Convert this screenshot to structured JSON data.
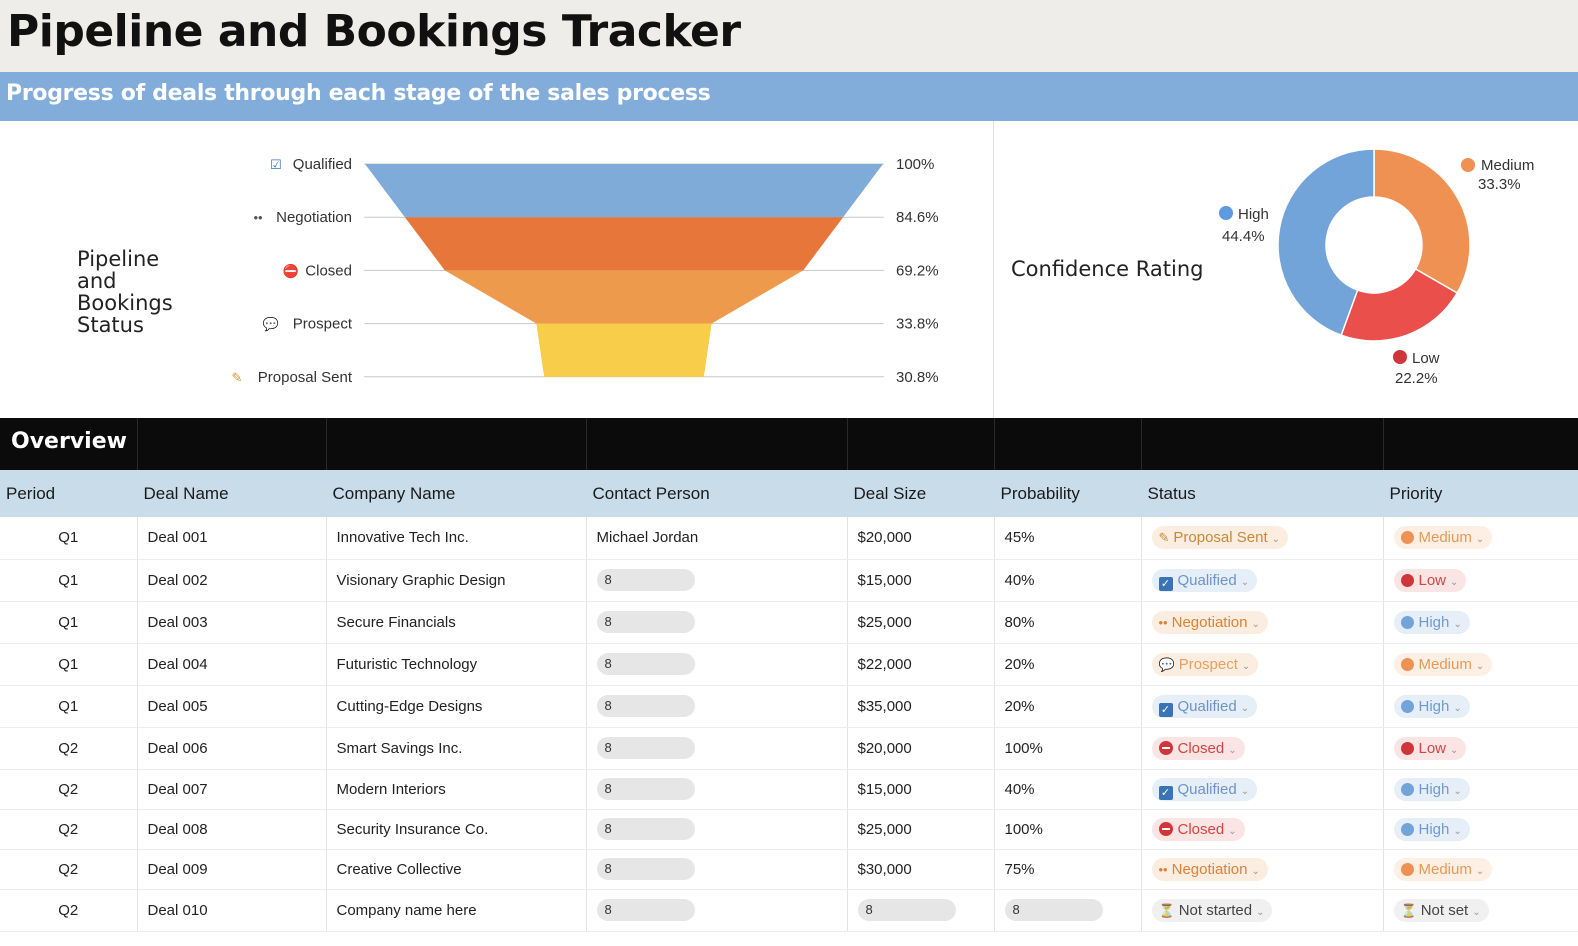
{
  "header": {
    "title": "Pipeline and Bookings Tracker",
    "subtitle": "Progress of deals through each stage of the sales process"
  },
  "funnel": {
    "title": "Pipeline and Bookings Status",
    "chart_data": {
      "type": "funnel",
      "stages": [
        {
          "label": "Qualified",
          "value": "100%",
          "pct": 100,
          "color": "#7fabd9",
          "icon": "checkbox-icon"
        },
        {
          "label": "Negotiation",
          "value": "84.6%",
          "pct": 84.6,
          "color": "#e6763a",
          "icon": "eyes-icon"
        },
        {
          "label": "Closed",
          "value": "69.2%",
          "pct": 69.2,
          "color": "#ee9a4d",
          "icon": "no-entry-icon"
        },
        {
          "label": "Prospect",
          "value": "33.8%",
          "pct": 33.8,
          "color": "#f7cd4a",
          "icon": "speech-bubble-icon"
        },
        {
          "label": "Proposal Sent",
          "value": "30.8%",
          "pct": 30.8,
          "color": "#f7cd4a",
          "icon": "pencil-icon"
        }
      ]
    }
  },
  "confidence": {
    "title": "Confidence Rating",
    "chart_data": {
      "type": "pie",
      "slices": [
        {
          "label": "Medium",
          "value": "33.3%",
          "pct": 33.3,
          "color": "#ef9152"
        },
        {
          "label": "Low",
          "value": "22.2%",
          "pct": 22.2,
          "color": "#ea4f4b"
        },
        {
          "label": "High",
          "value": "44.4%",
          "pct": 44.4,
          "color": "#72a3d9"
        }
      ]
    }
  },
  "overview": {
    "label": "Overview",
    "columns": [
      "Period",
      "Deal Name",
      "Company Name",
      "Contact Person",
      "Deal Size",
      "Probability",
      "Status",
      "Priority"
    ],
    "rows": [
      {
        "period": "Q1",
        "deal": "Deal 001",
        "company": "Innovative Tech Inc.",
        "contact": "Michael Jordan",
        "size": "$20,000",
        "prob": "45%",
        "status": "Proposal Sent",
        "priority": "Medium"
      },
      {
        "period": "Q1",
        "deal": "Deal 002",
        "company": "Visionary Graphic Design",
        "contact": "8",
        "size": "$15,000",
        "prob": "40%",
        "status": "Qualified",
        "priority": "Low"
      },
      {
        "period": "Q1",
        "deal": "Deal 003",
        "company": "Secure Financials",
        "contact": "8",
        "size": "$25,000",
        "prob": "80%",
        "status": "Negotiation",
        "priority": "High"
      },
      {
        "period": "Q1",
        "deal": "Deal 004",
        "company": "Futuristic Technology",
        "contact": "8",
        "size": "$22,000",
        "prob": "20%",
        "status": "Prospect",
        "priority": "Medium"
      },
      {
        "period": "Q1",
        "deal": "Deal 005",
        "company": "Cutting-Edge Designs",
        "contact": "8",
        "size": "$35,000",
        "prob": "20%",
        "status": "Qualified",
        "priority": "High"
      },
      {
        "period": "Q2",
        "deal": "Deal 006",
        "company": "Smart Savings Inc.",
        "contact": "8",
        "size": "$20,000",
        "prob": "100%",
        "status": "Closed",
        "priority": "Low"
      },
      {
        "period": "Q2",
        "deal": "Deal 007",
        "company": "Modern Interiors",
        "contact": "8",
        "size": "$15,000",
        "prob": "40%",
        "status": "Qualified",
        "priority": "High"
      },
      {
        "period": "Q2",
        "deal": "Deal 008",
        "company": "Security Insurance Co.",
        "contact": "8",
        "size": "$25,000",
        "prob": "100%",
        "status": "Closed",
        "priority": "High"
      },
      {
        "period": "Q2",
        "deal": "Deal 009",
        "company": "Creative Collective",
        "contact": "8",
        "size": "$30,000",
        "prob": "75%",
        "status": "Negotiation",
        "priority": "Medium"
      },
      {
        "period": "Q2",
        "deal": "Deal 010",
        "company": "Company name here",
        "contact": "8",
        "size": "8",
        "prob": "8",
        "status": "Not started",
        "priority": "Not set"
      }
    ]
  }
}
